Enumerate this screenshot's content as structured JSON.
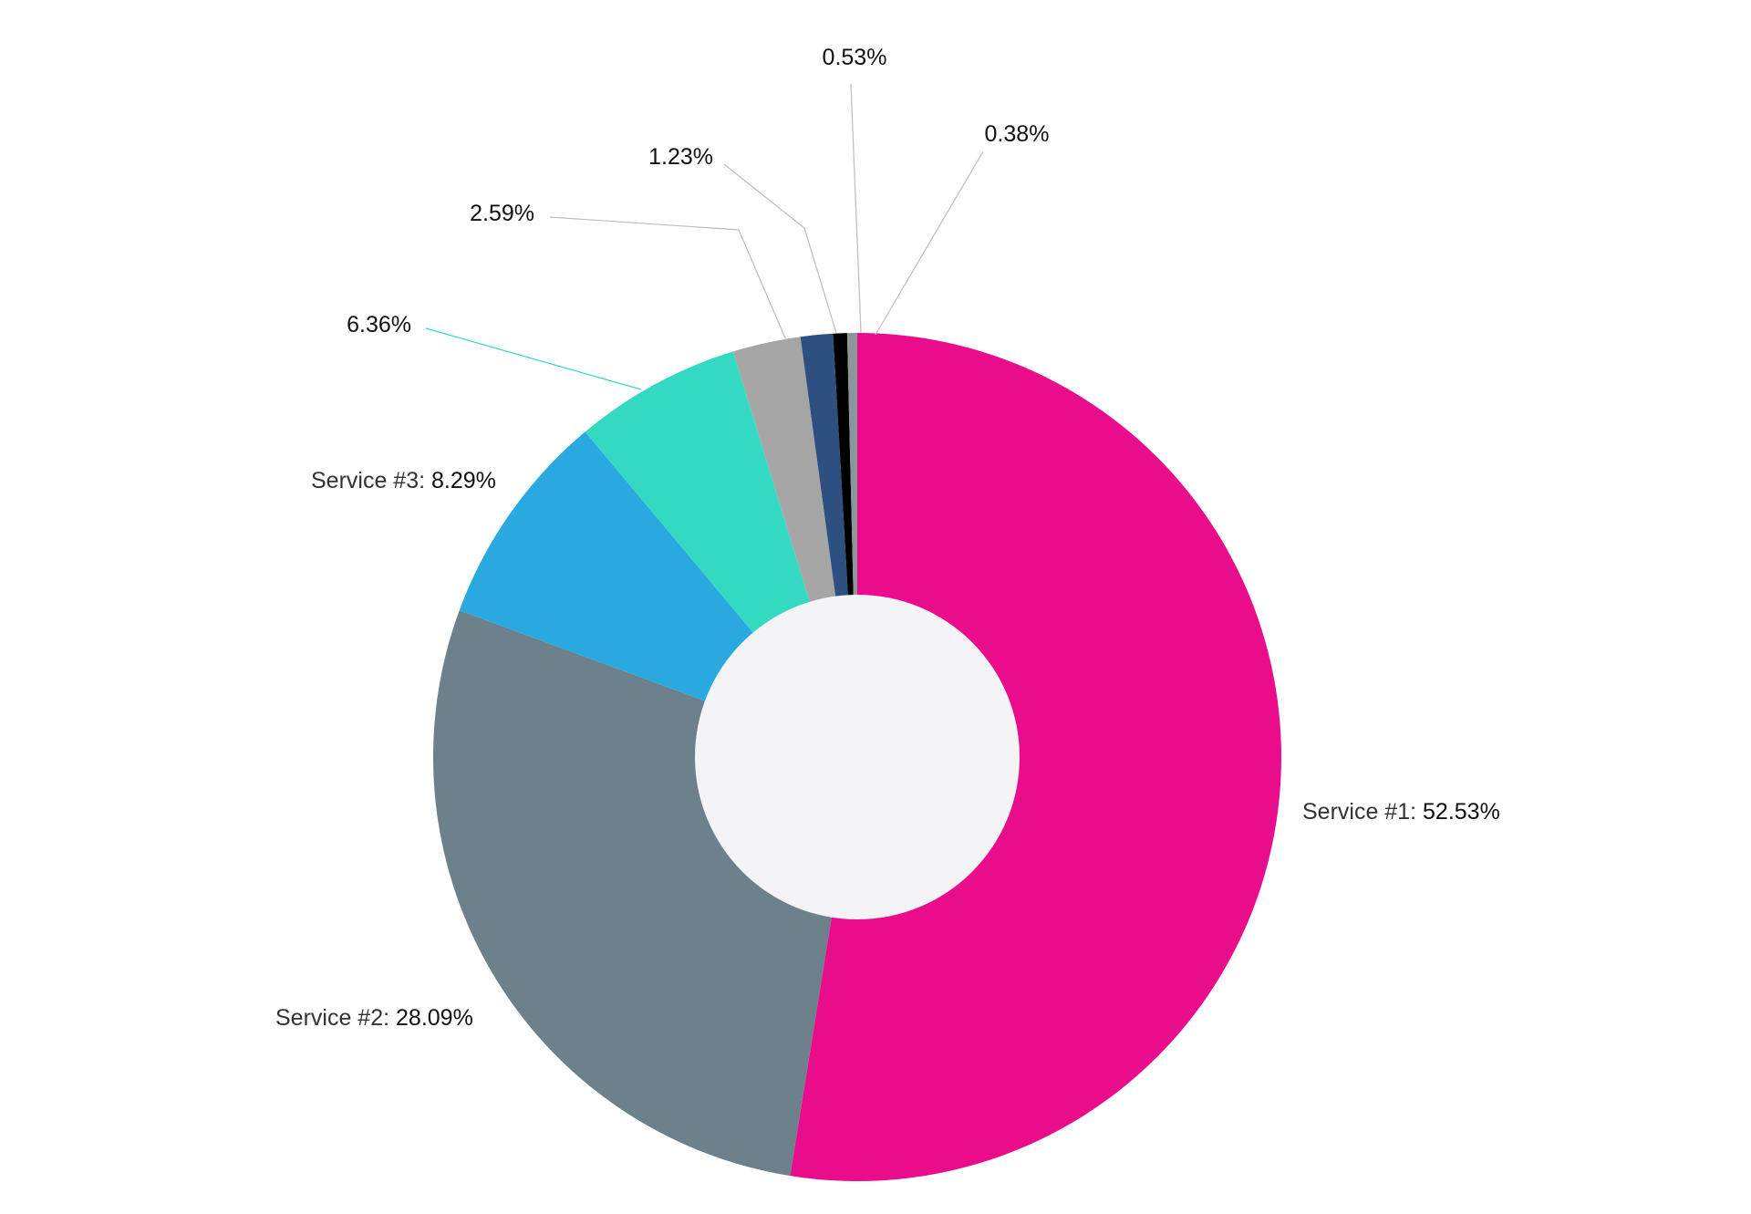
{
  "chart_data": {
    "type": "pie",
    "variant": "donut",
    "slices": [
      {
        "label": "Service #1",
        "value": 52.53,
        "value_label": "52.53%",
        "color": "#E90C8B"
      },
      {
        "label": "Service #2",
        "value": 28.09,
        "value_label": "28.09%",
        "color": "#6C818B"
      },
      {
        "label": "Service #3",
        "value": 8.29,
        "value_label": "8.29%",
        "color": "#2AA9E0"
      },
      {
        "label": "",
        "value": 6.36,
        "value_label": "6.36%",
        "color": "#33D9C1"
      },
      {
        "label": "",
        "value": 2.59,
        "value_label": "2.59%",
        "color": "#A5A5A5"
      },
      {
        "label": "",
        "value": 1.23,
        "value_label": "1.23%",
        "color": "#2D5080"
      },
      {
        "label": "",
        "value": 0.53,
        "value_label": "0.53%",
        "color": "#000000"
      },
      {
        "label": "",
        "value": 0.38,
        "value_label": "0.38%",
        "color": "#8C9598"
      }
    ],
    "start_angle": "12 o'clock",
    "direction": "clockwise",
    "center_color": "#F4F4F6",
    "legend": "none"
  }
}
